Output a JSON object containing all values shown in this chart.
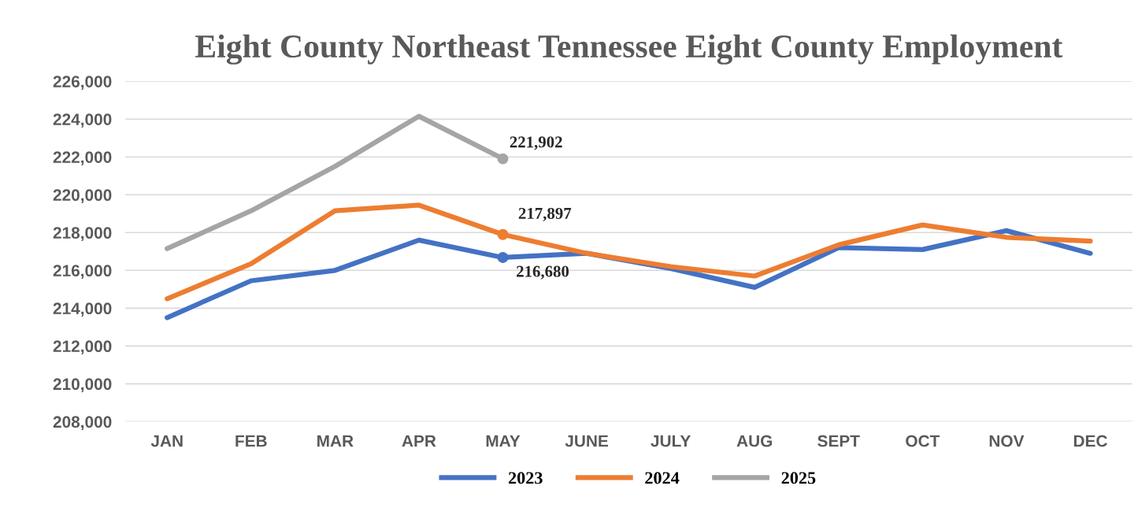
{
  "chart_data": {
    "type": "line",
    "title": "Eight County Northeast Tennessee Eight County Employment",
    "categories": [
      "JAN",
      "FEB",
      "MAR",
      "APR",
      "MAY",
      "JUNE",
      "JULY",
      "AUG",
      "SEPT",
      "OCT",
      "NOV",
      "DEC"
    ],
    "series": [
      {
        "name": "2023",
        "color": "#4472c4",
        "values": [
          213500,
          215450,
          216000,
          217600,
          216680,
          216900,
          216100,
          215100,
          217200,
          217100,
          218100,
          216900
        ],
        "value_labels": [
          null,
          null,
          null,
          null,
          "216,680",
          null,
          null,
          null,
          null,
          null,
          null,
          null
        ]
      },
      {
        "name": "2024",
        "color": "#ed7d31",
        "values": [
          214500,
          216350,
          219150,
          219450,
          217897,
          216900,
          216200,
          215700,
          217350,
          218400,
          217750,
          217550
        ],
        "value_labels": [
          null,
          null,
          null,
          null,
          "217,897",
          null,
          null,
          null,
          null,
          null,
          null,
          null
        ]
      },
      {
        "name": "2025",
        "color": "#a5a5a5",
        "values": [
          217150,
          219150,
          221500,
          224150,
          221902,
          null,
          null,
          null,
          null,
          null,
          null,
          null
        ],
        "value_labels": [
          null,
          null,
          null,
          null,
          "221,902",
          null,
          null,
          null,
          null,
          null,
          null,
          null
        ]
      }
    ],
    "ylim": [
      208000,
      226000
    ],
    "yticks": [
      {
        "value": 208000,
        "label": "208,000"
      },
      {
        "value": 210000,
        "label": "210,000"
      },
      {
        "value": 212000,
        "label": "212,000"
      },
      {
        "value": 214000,
        "label": "214,000"
      },
      {
        "value": 216000,
        "label": "216,000"
      },
      {
        "value": 218000,
        "label": "218,000"
      },
      {
        "value": 220000,
        "label": "220,000"
      },
      {
        "value": 222000,
        "label": "222,000"
      },
      {
        "value": 224000,
        "label": "224,000"
      },
      {
        "value": 226000,
        "label": "226,000"
      }
    ],
    "grid": "y",
    "legend": "bottom",
    "line_style": "solid"
  }
}
